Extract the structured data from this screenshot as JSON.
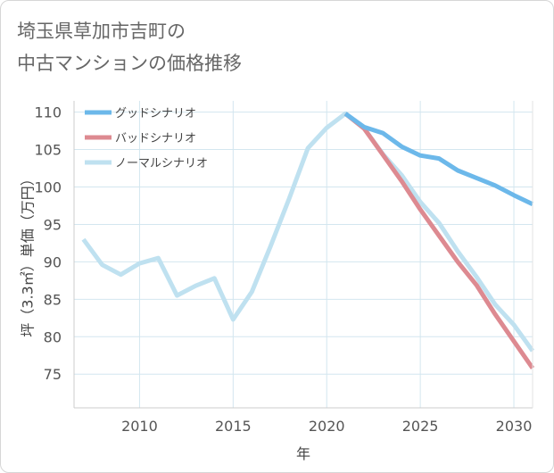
{
  "title_lines": [
    "埼玉県草加市吉町の",
    "中古マンションの価格推移"
  ],
  "chart_data": {
    "type": "line",
    "title": "埼玉県草加市吉町の中古マンションの価格推移",
    "xlabel": "年",
    "ylabel": "坪（3.3㎡）単価（万円）",
    "xlim": [
      2006.5,
      2031
    ],
    "ylim": [
      70.5,
      111.5
    ],
    "x_ticks": [
      2010,
      2015,
      2020,
      2025,
      2030
    ],
    "y_ticks": [
      75,
      80,
      85,
      90,
      95,
      100,
      105,
      110
    ],
    "grid": true,
    "legend_position": "top-left",
    "series": [
      {
        "name": "グッドシナリオ",
        "color": "#6cb8ea",
        "x": [
          2021,
          2022,
          2023,
          2024,
          2025,
          2026,
          2027,
          2028,
          2029,
          2030,
          2031
        ],
        "y": [
          109.8,
          108.0,
          107.2,
          105.4,
          104.2,
          103.8,
          102.2,
          101.2,
          100.2,
          98.9,
          97.7
        ]
      },
      {
        "name": "バッドシナリオ",
        "color": "#dd8a91",
        "x": [
          2021,
          2022,
          2023,
          2024,
          2025,
          2026,
          2027,
          2028,
          2029,
          2030,
          2031
        ],
        "y": [
          109.8,
          107.8,
          104.3,
          100.8,
          97.0,
          93.5,
          90.0,
          86.9,
          83.0,
          79.4,
          75.8
        ]
      },
      {
        "name": "ノーマルシナリオ",
        "color": "#bfe1f0",
        "x": [
          2007,
          2008,
          2009,
          2010,
          2011,
          2012,
          2013,
          2014,
          2015,
          2016,
          2017,
          2018,
          2019,
          2020,
          2021,
          2022,
          2023,
          2024,
          2025,
          2026,
          2027,
          2028,
          2029,
          2030,
          2031
        ],
        "y": [
          93.0,
          89.6,
          88.3,
          89.8,
          90.5,
          85.5,
          86.8,
          87.8,
          82.3,
          86.0,
          92.1,
          98.5,
          105.2,
          107.9,
          109.8,
          107.8,
          104.4,
          101.6,
          98.0,
          95.2,
          91.4,
          88.0,
          84.3,
          81.6,
          78.1
        ]
      }
    ]
  }
}
